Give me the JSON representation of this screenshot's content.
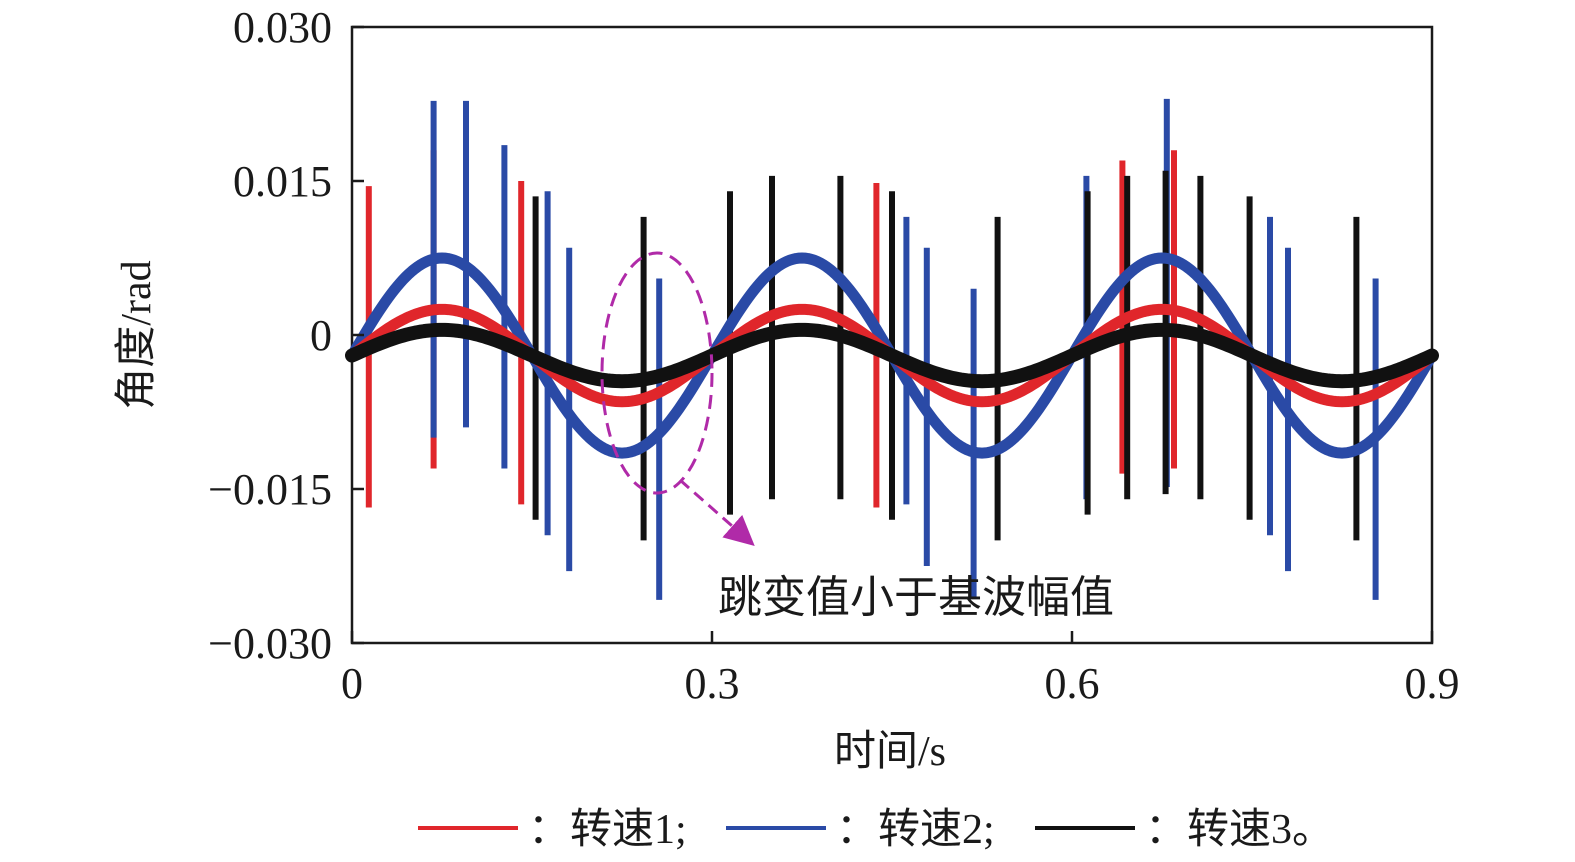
{
  "chart_data": {
    "type": "line",
    "xlabel": "时间/s",
    "ylabel": "角度/rad",
    "xlim": [
      0,
      0.9
    ],
    "ylim": [
      -0.03,
      0.03
    ],
    "xticks": [
      0,
      0.3,
      0.6,
      0.9
    ],
    "xtick_labels": [
      "0",
      "0.3",
      "0.6",
      "0.9"
    ],
    "yticks": [
      0.03,
      0.015,
      0,
      -0.015,
      -0.03
    ],
    "ytick_labels": [
      "0.030",
      "0.015",
      "0",
      "−0.015",
      "−0.030"
    ],
    "grid": false,
    "legend_position": "bottom",
    "annotation": "跳变值小于基波幅值",
    "series": [
      {
        "name": "转速1",
        "legend_label": "：转速1;",
        "color": "#e0262b",
        "line": {
          "offset": -0.002,
          "amplitude": 0.0045,
          "period": 0.3,
          "phase_x": 0.075
        },
        "spikes": [
          {
            "x": 0.014,
            "top": 0.0145,
            "bottom": -0.0168
          },
          {
            "x": 0.068,
            "top": 0.018,
            "bottom": -0.013
          },
          {
            "x": 0.141,
            "top": 0.015,
            "bottom": -0.0165
          },
          {
            "x": 0.437,
            "top": 0.0148,
            "bottom": -0.0168
          },
          {
            "x": 0.642,
            "top": 0.017,
            "bottom": -0.0135
          },
          {
            "x": 0.685,
            "top": 0.018,
            "bottom": -0.013
          }
        ]
      },
      {
        "name": "转速2",
        "legend_label": "：转速2;",
        "color": "#2a4aa6",
        "line": {
          "offset": -0.002,
          "amplitude": 0.0095,
          "period": 0.3,
          "phase_x": 0.075
        },
        "spikes": [
          {
            "x": 0.068,
            "top": 0.0228,
            "bottom": -0.01
          },
          {
            "x": 0.095,
            "top": 0.0228,
            "bottom": -0.009
          },
          {
            "x": 0.127,
            "top": 0.0185,
            "bottom": -0.013
          },
          {
            "x": 0.163,
            "top": 0.014,
            "bottom": -0.0195
          },
          {
            "x": 0.181,
            "top": 0.0085,
            "bottom": -0.023
          },
          {
            "x": 0.256,
            "top": 0.0055,
            "bottom": -0.0258
          },
          {
            "x": 0.462,
            "top": 0.0115,
            "bottom": -0.0165
          },
          {
            "x": 0.479,
            "top": 0.0085,
            "bottom": -0.0225
          },
          {
            "x": 0.518,
            "top": 0.0045,
            "bottom": -0.0255
          },
          {
            "x": 0.612,
            "top": 0.0155,
            "bottom": -0.016
          },
          {
            "x": 0.679,
            "top": 0.023,
            "bottom": -0.0148
          },
          {
            "x": 0.765,
            "top": 0.0115,
            "bottom": -0.0195
          },
          {
            "x": 0.78,
            "top": 0.0085,
            "bottom": -0.023
          },
          {
            "x": 0.853,
            "top": 0.0055,
            "bottom": -0.0258
          }
        ]
      },
      {
        "name": "转速3",
        "legend_label": "：转速3。",
        "color": "#111111",
        "line": {
          "offset": -0.002,
          "amplitude": 0.0025,
          "period": 0.3,
          "phase_x": 0.075
        },
        "spikes": [
          {
            "x": 0.153,
            "top": 0.0135,
            "bottom": -0.018
          },
          {
            "x": 0.243,
            "top": 0.0115,
            "bottom": -0.02
          },
          {
            "x": 0.315,
            "top": 0.014,
            "bottom": -0.0175
          },
          {
            "x": 0.35,
            "top": 0.0155,
            "bottom": -0.016
          },
          {
            "x": 0.407,
            "top": 0.0155,
            "bottom": -0.016
          },
          {
            "x": 0.45,
            "top": 0.014,
            "bottom": -0.018
          },
          {
            "x": 0.538,
            "top": 0.0115,
            "bottom": -0.02
          },
          {
            "x": 0.613,
            "top": 0.014,
            "bottom": -0.0175
          },
          {
            "x": 0.646,
            "top": 0.0155,
            "bottom": -0.016
          },
          {
            "x": 0.678,
            "top": 0.016,
            "bottom": -0.0155
          },
          {
            "x": 0.707,
            "top": 0.0155,
            "bottom": -0.016
          },
          {
            "x": 0.748,
            "top": 0.0135,
            "bottom": -0.018
          },
          {
            "x": 0.837,
            "top": 0.0115,
            "bottom": -0.02
          }
        ]
      }
    ]
  }
}
